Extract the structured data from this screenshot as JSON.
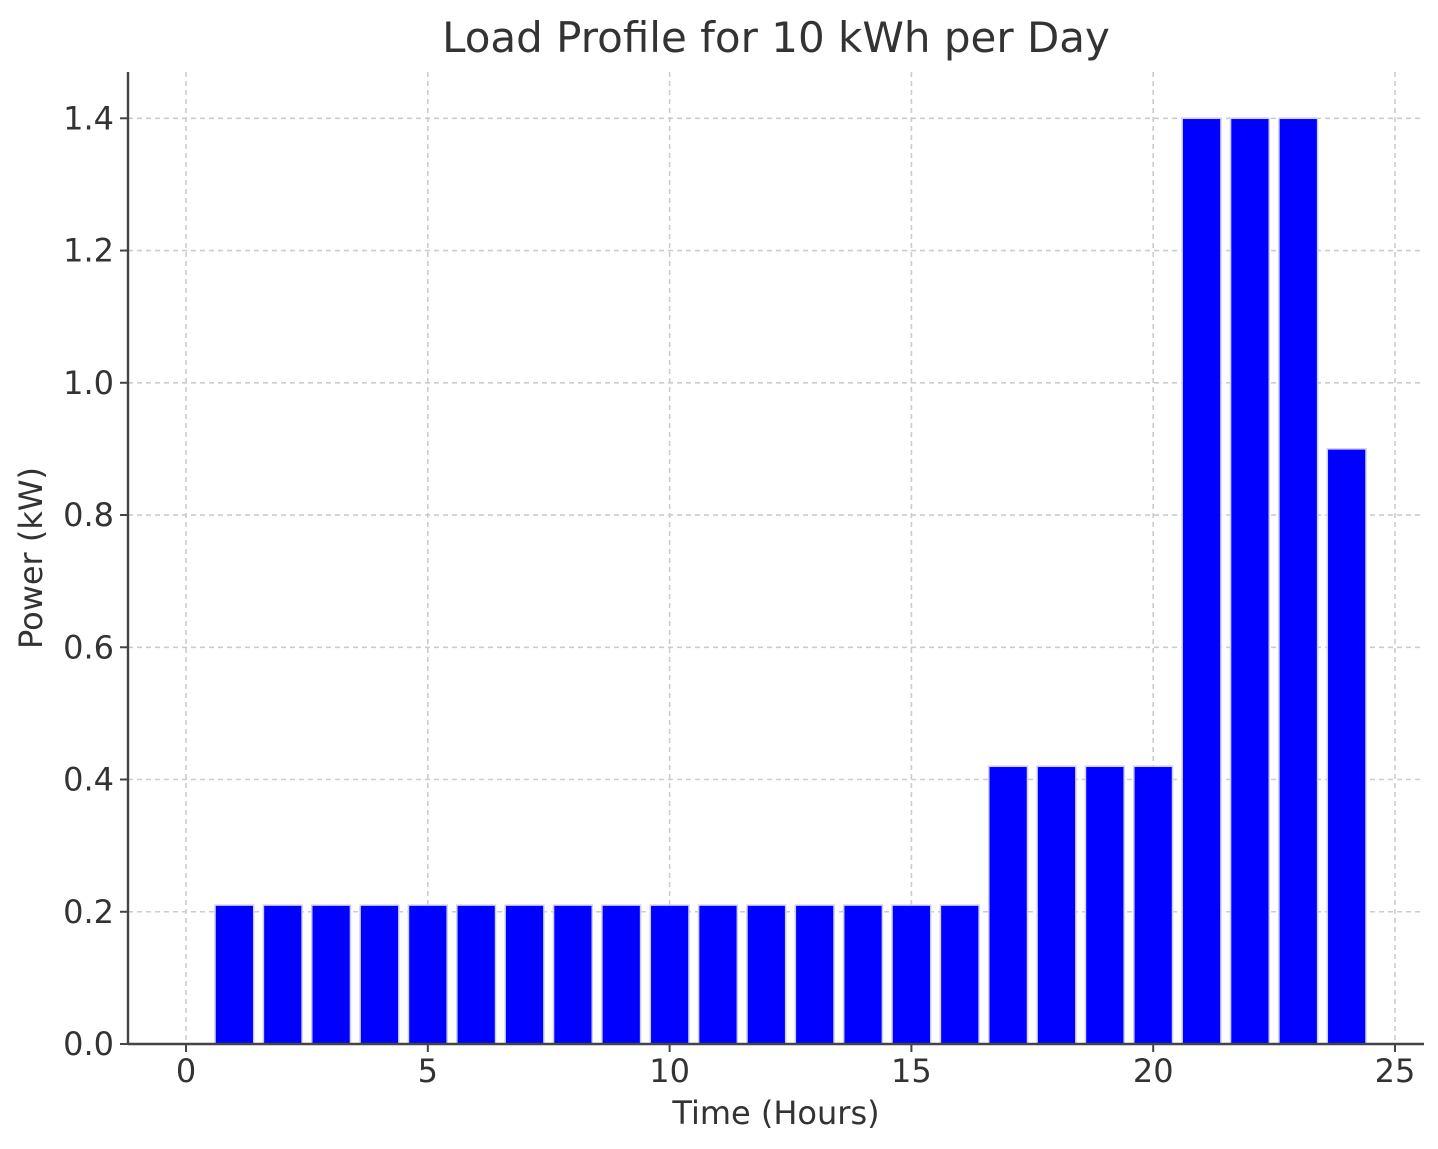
{
  "chart_data": {
    "type": "bar",
    "title": "Load Profile for 10 kWh per Day",
    "xlabel": "Time (Hours)",
    "ylabel": "Power (kW)",
    "x": [
      1,
      2,
      3,
      4,
      5,
      6,
      7,
      8,
      9,
      10,
      11,
      12,
      13,
      14,
      15,
      16,
      17,
      18,
      19,
      20,
      21,
      22,
      23,
      24
    ],
    "values": [
      0.21,
      0.21,
      0.21,
      0.21,
      0.21,
      0.21,
      0.21,
      0.21,
      0.21,
      0.21,
      0.21,
      0.21,
      0.21,
      0.21,
      0.21,
      0.21,
      0.42,
      0.42,
      0.42,
      0.42,
      1.4,
      1.4,
      1.4,
      0.9
    ],
    "xlim": [
      -1.2,
      25.6
    ],
    "ylim": [
      0,
      1.47
    ],
    "xticks": [
      0,
      5,
      10,
      15,
      20,
      25
    ],
    "xtick_labels": [
      "0",
      "5",
      "10",
      "15",
      "20",
      "25"
    ],
    "yticks": [
      0.0,
      0.2,
      0.4,
      0.6,
      0.8,
      1.0,
      1.2,
      1.4
    ],
    "ytick_labels": [
      "0.0",
      "0.2",
      "0.4",
      "0.6",
      "0.8",
      "1.0",
      "1.2",
      "1.4"
    ],
    "bar_width": 0.8,
    "grid": true,
    "colors": {
      "bar": "#0000ff",
      "bar_edge": "#ccccff",
      "grid": "#cccccc",
      "axis": "#444444",
      "text": "#333333"
    }
  }
}
